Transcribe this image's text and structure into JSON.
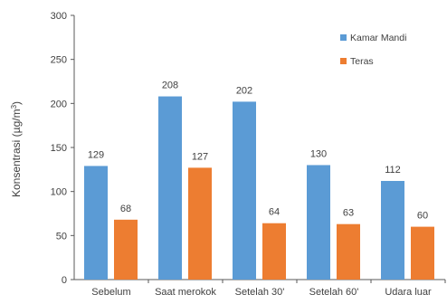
{
  "chart_data": {
    "type": "bar",
    "ylabel_main": "Konsentrasi (µg/m",
    "ylabel_sup": "3",
    "ylabel_tail": ")",
    "ylim": [
      0,
      300
    ],
    "yticks": [
      0,
      50,
      100,
      150,
      200,
      250,
      300
    ],
    "categories": [
      "Sebelum",
      "Saat merokok",
      "Setelah 30'",
      "Setelah 60'",
      "Udara luar"
    ],
    "series": [
      {
        "name": "Kamar Mandi",
        "color": "#5b9bd5",
        "values": [
          129,
          208,
          202,
          130,
          112
        ]
      },
      {
        "name": "Teras",
        "color": "#ed7d31",
        "values": [
          68,
          127,
          64,
          63,
          60
        ]
      }
    ],
    "legend_position": "top-right",
    "grid": false
  }
}
